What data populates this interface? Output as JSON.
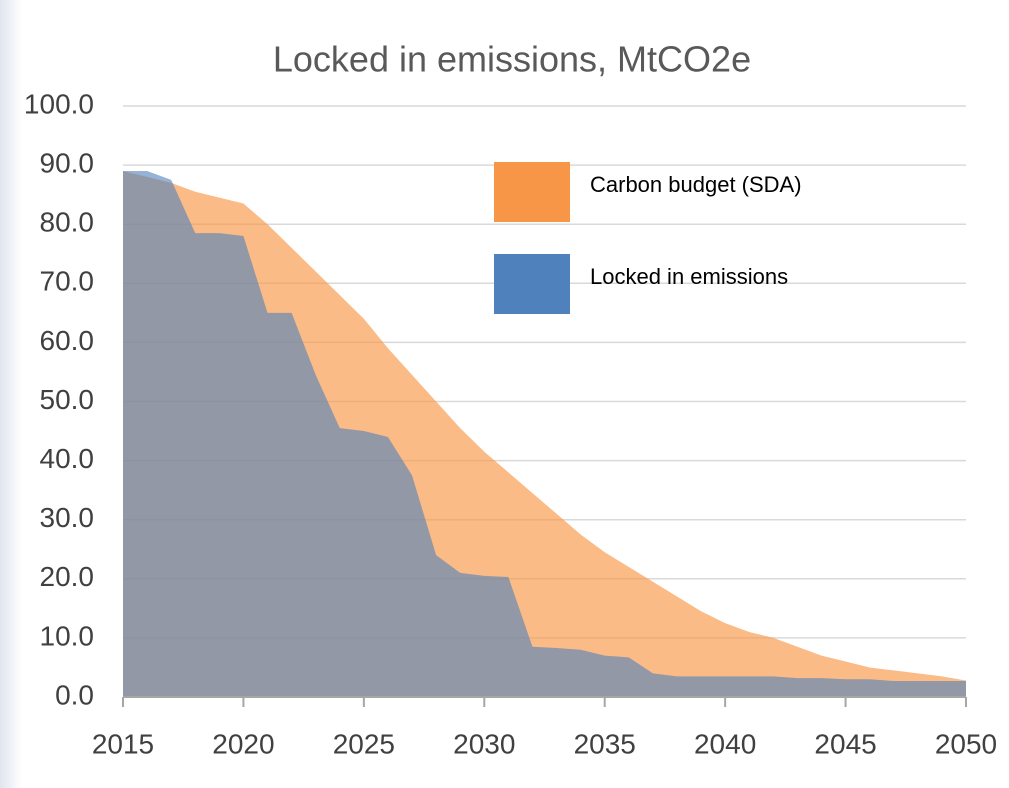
{
  "chart_data": {
    "type": "area",
    "title": "Locked in emissions, MtCO2e",
    "x": [
      2015,
      2016,
      2017,
      2018,
      2019,
      2020,
      2021,
      2022,
      2023,
      2024,
      2025,
      2026,
      2027,
      2028,
      2029,
      2030,
      2031,
      2032,
      2033,
      2034,
      2035,
      2036,
      2037,
      2038,
      2039,
      2040,
      2041,
      2042,
      2043,
      2044,
      2045,
      2046,
      2047,
      2048,
      2049,
      2050
    ],
    "series": [
      {
        "name": "Carbon budget (SDA)",
        "color": "#f79646",
        "values": [
          89,
          88,
          87,
          85.5,
          84.5,
          83.5,
          80,
          76,
          72,
          68,
          64,
          59,
          54.5,
          50,
          45.5,
          41.5,
          38,
          34.5,
          31,
          27.5,
          24.5,
          22,
          19.5,
          17,
          14.5,
          12.5,
          11,
          10,
          8.5,
          7,
          6,
          5,
          4.5,
          4,
          3.5,
          2.8
        ]
      },
      {
        "name": "Locked in emissions",
        "color": "#4f81bd",
        "values": [
          89,
          89,
          87.5,
          78.5,
          78.5,
          78,
          65,
          65,
          54.5,
          45.5,
          45,
          44,
          37.5,
          24,
          21,
          20.5,
          20.3,
          8.5,
          8.3,
          8,
          7,
          6.7,
          4,
          3.5,
          3.5,
          3.5,
          3.5,
          3.5,
          3.2,
          3.2,
          3,
          3,
          2.7,
          2.7,
          2.7,
          2.7
        ]
      }
    ],
    "xlim": [
      2015,
      2050
    ],
    "xticks": [
      2015,
      2020,
      2025,
      2030,
      2035,
      2040,
      2045,
      2050
    ],
    "ylim": [
      0,
      100
    ],
    "yticks": [
      {
        "value": 0,
        "label": "0.0"
      },
      {
        "value": 10,
        "label": "10.0"
      },
      {
        "value": 20,
        "label": "20.0"
      },
      {
        "value": 30,
        "label": "30.0"
      },
      {
        "value": 40,
        "label": "40.0"
      },
      {
        "value": 50,
        "label": "50.0"
      },
      {
        "value": 60,
        "label": "60.0"
      },
      {
        "value": 70,
        "label": "70.0"
      },
      {
        "value": 80,
        "label": "80.0"
      },
      {
        "value": 90,
        "label": "90.0"
      },
      {
        "value": 100,
        "label": "100.0"
      }
    ],
    "grid": true,
    "legend": "upper-right"
  }
}
